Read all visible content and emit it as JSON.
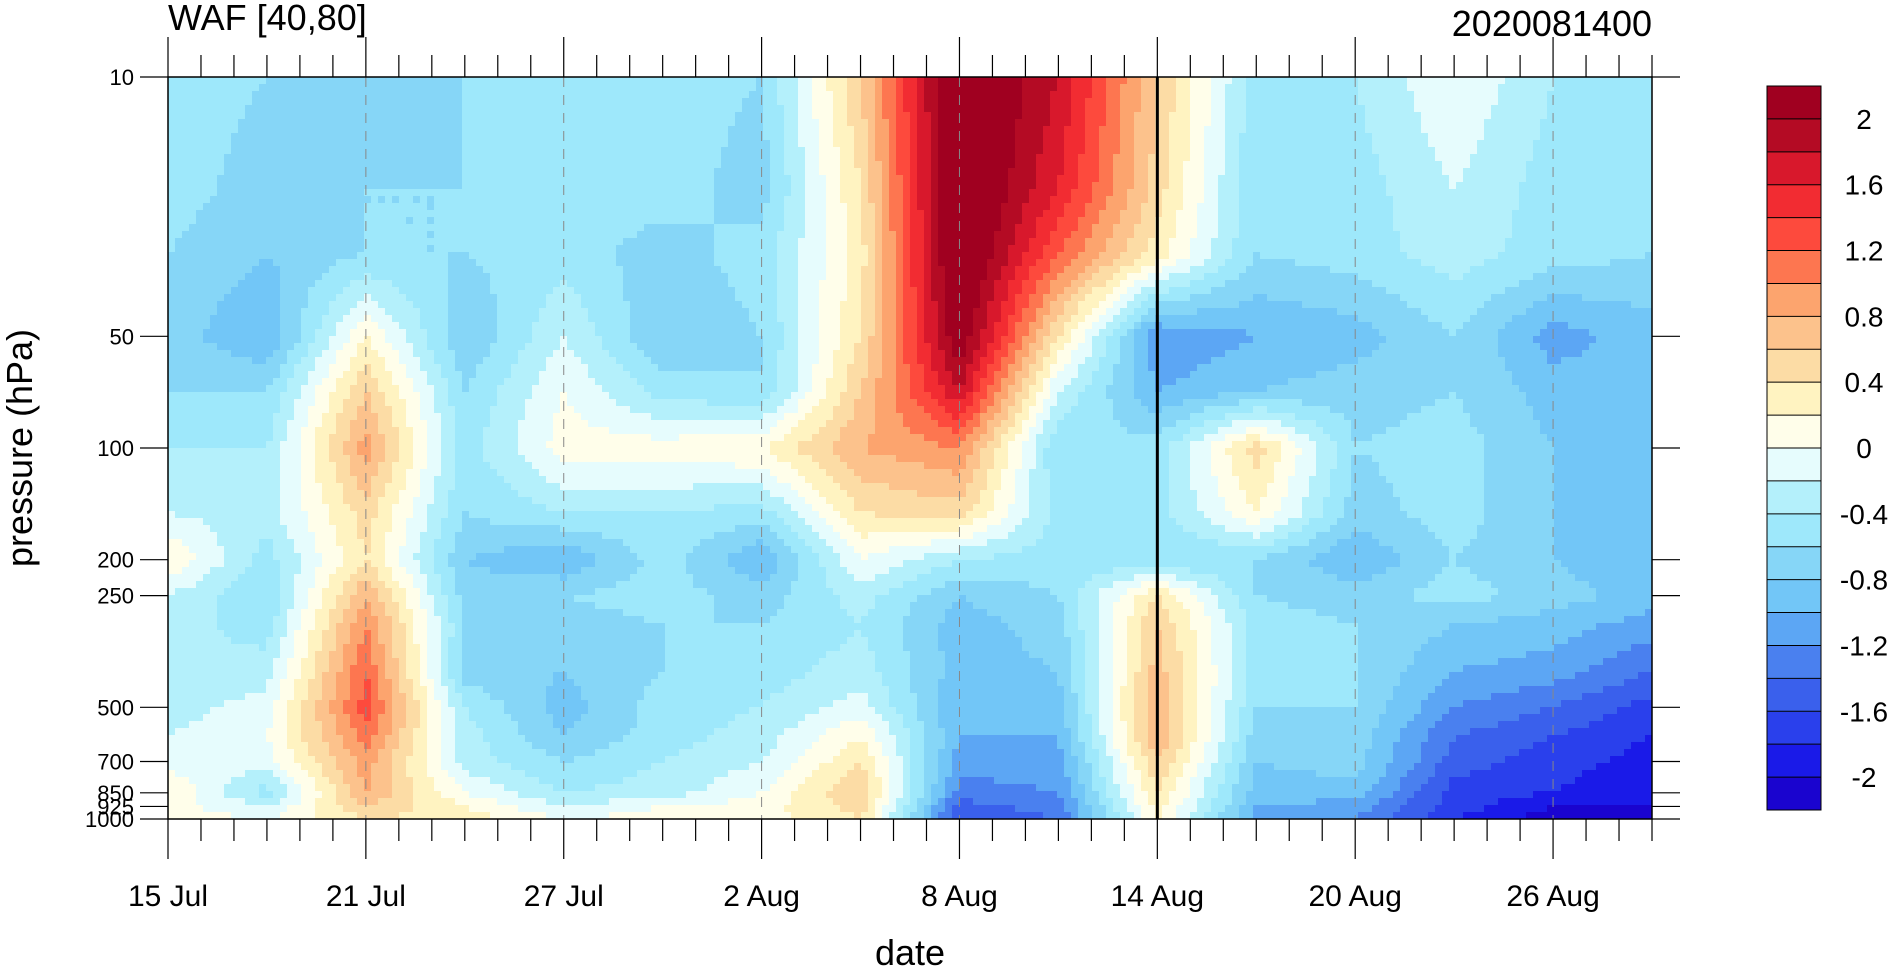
{
  "chart_data": {
    "type": "heatmap",
    "title": "WAF [40,80]",
    "subtitle": "2020081400",
    "xlabel": "date",
    "ylabel": "pressure (hPa)",
    "x_start": "15 Jul",
    "x_end": "29 Aug",
    "x_tick_labels": [
      "15 Jul",
      "21 Jul",
      "27 Jul",
      "2 Aug",
      "8 Aug",
      "14 Aug",
      "20 Aug",
      "26 Aug"
    ],
    "x_tick_days": [
      0,
      6,
      12,
      18,
      24,
      30,
      36,
      42
    ],
    "x_range_days": [
      0,
      45
    ],
    "y_scale": "log",
    "y_reversed": true,
    "ylim": [
      1000,
      10
    ],
    "y_ticks": [
      10,
      50,
      100,
      200,
      250,
      500,
      700,
      850,
      925,
      1000
    ],
    "y_tick_labels": [
      "10",
      "50",
      "100",
      "200",
      "250",
      "500",
      "700",
      "850",
      "925",
      "1000"
    ],
    "marker_line_day": 30,
    "marker_line_label": "14 Aug",
    "colorbar": {
      "levels": [
        -2.2,
        -2,
        -1.8,
        -1.6,
        -1.4,
        -1.2,
        -1,
        -0.8,
        -0.6,
        -0.4,
        -0.2,
        0,
        0.2,
        0.4,
        0.6,
        0.8,
        1,
        1.2,
        1.4,
        1.6,
        1.8,
        2,
        2.2
      ],
      "colors": [
        "#1a04cf",
        "#1a1ae8",
        "#2a40ec",
        "#3a60ec",
        "#4a80ef",
        "#5ca6f4",
        "#72c6f7",
        "#86d6f7",
        "#9ee8fb",
        "#b4f0fb",
        "#e6fcfd",
        "#fffeea",
        "#fff3c1",
        "#fcdca5",
        "#fcc28c",
        "#fca46e",
        "#fd7650",
        "#fd4a3d",
        "#f22c32",
        "#d8182c",
        "#b40b24",
        "#a00020"
      ],
      "labels": [
        "2",
        "1.6",
        "1.2",
        "0.8",
        "0.4",
        "0",
        "-0.4",
        "-0.8",
        "-1.2",
        "-1.6",
        "-2"
      ]
    },
    "pressure_levels": [
      10,
      20,
      30,
      50,
      70,
      100,
      150,
      200,
      250,
      300,
      400,
      500,
      600,
      700,
      850,
      925,
      1000
    ],
    "days_per_sample": 3,
    "sample_days": [
      0,
      3,
      6,
      9,
      12,
      15,
      18,
      21,
      24,
      27,
      30,
      33,
      36,
      39,
      42,
      45
    ],
    "values_rows_by_pressure": [
      [
        -0.5,
        -0.6,
        -0.7,
        -0.6,
        -0.5,
        -0.5,
        -0.6,
        0.6,
        2.4,
        1.8,
        0.6,
        -0.5,
        -0.4,
        0.0,
        -0.4,
        -0.5
      ],
      [
        -0.5,
        -0.7,
        -0.6,
        -0.6,
        -0.5,
        -0.5,
        -0.7,
        0.4,
        2.4,
        1.6,
        0.5,
        -0.6,
        -0.5,
        -0.2,
        -0.5,
        -0.5
      ],
      [
        -0.6,
        -0.8,
        -0.6,
        -0.6,
        -0.5,
        -0.7,
        -0.5,
        0.3,
        2.4,
        1.2,
        0.3,
        -0.6,
        -0.5,
        -0.3,
        -0.5,
        -0.6
      ],
      [
        -0.7,
        -1.0,
        0.2,
        -0.8,
        -0.2,
        -0.8,
        -0.6,
        0.4,
        2.2,
        0.4,
        -1.2,
        -1.0,
        -0.9,
        -0.6,
        -1.1,
        -0.9
      ],
      [
        -0.6,
        -0.6,
        0.6,
        -0.6,
        0.0,
        -0.5,
        -0.6,
        0.6,
        1.8,
        -0.2,
        -1.0,
        -0.8,
        -0.7,
        -0.6,
        -0.9,
        -0.9
      ],
      [
        -0.4,
        -0.4,
        0.9,
        -0.5,
        0.1,
        0.1,
        0.2,
        0.8,
        1.0,
        -0.6,
        -0.5,
        0.5,
        -0.6,
        -0.5,
        -0.8,
        -0.9
      ],
      [
        -0.2,
        -0.3,
        0.5,
        -0.6,
        -0.4,
        -0.4,
        -0.5,
        0.4,
        0.5,
        -0.5,
        -0.5,
        0.2,
        -0.7,
        -0.5,
        -0.8,
        -0.9
      ],
      [
        0.2,
        -0.5,
        0.4,
        -0.8,
        -1.0,
        -0.5,
        -1.0,
        0.0,
        -0.4,
        -0.5,
        -0.6,
        -0.6,
        -1.0,
        -0.6,
        -0.8,
        -1.0
      ],
      [
        -0.2,
        -0.6,
        0.8,
        -0.7,
        -0.6,
        -0.5,
        -0.7,
        -0.3,
        -0.8,
        -0.6,
        0.4,
        -0.6,
        -0.7,
        -0.5,
        -0.7,
        -0.9
      ],
      [
        -0.3,
        -0.5,
        1.0,
        -0.6,
        -0.7,
        -0.6,
        -0.6,
        -0.4,
        -0.9,
        -0.7,
        0.6,
        -0.5,
        -0.6,
        -0.8,
        -0.9,
        -1.1
      ],
      [
        -0.4,
        -0.3,
        1.2,
        -0.7,
        -0.8,
        -0.6,
        -0.5,
        -0.3,
        -0.9,
        -0.8,
        0.7,
        -0.5,
        -0.6,
        -1.0,
        -1.1,
        -1.4
      ],
      [
        -0.3,
        -0.1,
        1.3,
        -0.4,
        -0.9,
        -0.5,
        -0.4,
        -0.1,
        -1.0,
        -0.9,
        0.8,
        -0.6,
        -0.6,
        -1.2,
        -1.4,
        -1.7
      ],
      [
        -0.2,
        0.0,
        1.1,
        -0.3,
        -0.8,
        -0.5,
        -0.3,
        0.2,
        -1.0,
        -1.0,
        0.8,
        -0.7,
        -0.7,
        -1.4,
        -1.6,
        -1.8
      ],
      [
        -0.1,
        -0.1,
        0.9,
        -0.3,
        -0.6,
        -0.4,
        -0.2,
        0.4,
        -1.1,
        -1.1,
        0.6,
        -0.8,
        -0.7,
        -1.5,
        -1.7,
        -1.9
      ],
      [
        0.2,
        -0.5,
        0.8,
        0.0,
        -0.4,
        -0.3,
        0.0,
        0.6,
        -1.3,
        -1.2,
        0.4,
        -0.9,
        -0.9,
        -1.7,
        -1.8,
        -2.0
      ],
      [
        0.1,
        -0.2,
        0.6,
        0.2,
        -0.2,
        0.0,
        0.1,
        0.5,
        -1.5,
        -1.3,
        0.3,
        -1.0,
        -1.1,
        -1.7,
        -2.0,
        -2.0
      ],
      [
        0.1,
        0.0,
        0.4,
        0.3,
        0.0,
        0.1,
        0.1,
        0.4,
        -1.6,
        -1.4,
        0.2,
        -1.1,
        -1.2,
        -1.8,
        -2.1,
        -2.1
      ]
    ]
  }
}
